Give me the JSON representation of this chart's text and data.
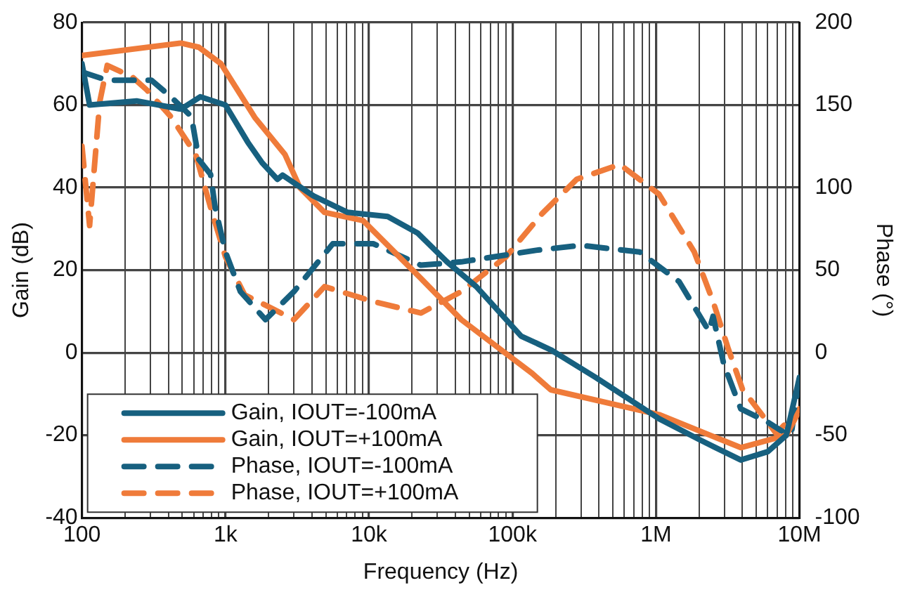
{
  "chart_data": {
    "type": "line",
    "xlabel": "Frequency (Hz)",
    "ylabel": "Gain (dB)",
    "y2label": "Phase (°)",
    "log": "x",
    "grid": true,
    "legend": "bottom left",
    "marker": "none",
    "xlim": [
      100,
      10000000
    ],
    "xticks": [
      {
        "value": 100,
        "label": "100"
      },
      {
        "value": 200,
        "label": null
      },
      {
        "value": 300,
        "label": null
      },
      {
        "value": 400,
        "label": null
      },
      {
        "value": 500,
        "label": null
      },
      {
        "value": 600,
        "label": null
      },
      {
        "value": 700,
        "label": null
      },
      {
        "value": 800,
        "label": null
      },
      {
        "value": 900,
        "label": null
      },
      {
        "value": 1000,
        "label": "1k"
      },
      {
        "value": 2000,
        "label": null
      },
      {
        "value": 3000,
        "label": null
      },
      {
        "value": 4000,
        "label": null
      },
      {
        "value": 5000,
        "label": null
      },
      {
        "value": 6000,
        "label": null
      },
      {
        "value": 7000,
        "label": null
      },
      {
        "value": 8000,
        "label": null
      },
      {
        "value": 9000,
        "label": null
      },
      {
        "value": 10000,
        "label": "10k"
      },
      {
        "value": 20000,
        "label": null
      },
      {
        "value": 30000,
        "label": null
      },
      {
        "value": 40000,
        "label": null
      },
      {
        "value": 50000,
        "label": null
      },
      {
        "value": 60000,
        "label": null
      },
      {
        "value": 70000,
        "label": null
      },
      {
        "value": 80000,
        "label": null
      },
      {
        "value": 90000,
        "label": null
      },
      {
        "value": 100000,
        "label": "100k"
      },
      {
        "value": 200000,
        "label": null
      },
      {
        "value": 300000,
        "label": null
      },
      {
        "value": 400000,
        "label": null
      },
      {
        "value": 500000,
        "label": null
      },
      {
        "value": 600000,
        "label": null
      },
      {
        "value": 700000,
        "label": null
      },
      {
        "value": 800000,
        "label": null
      },
      {
        "value": 900000,
        "label": null
      },
      {
        "value": 1000000,
        "label": "1M"
      },
      {
        "value": 2000000,
        "label": null
      },
      {
        "value": 3000000,
        "label": null
      },
      {
        "value": 4000000,
        "label": null
      },
      {
        "value": 5000000,
        "label": null
      },
      {
        "value": 6000000,
        "label": null
      },
      {
        "value": 7000000,
        "label": null
      },
      {
        "value": 8000000,
        "label": null
      },
      {
        "value": 9000000,
        "label": null
      },
      {
        "value": 10000000,
        "label": "10M"
      }
    ],
    "ylim": [
      -40,
      80
    ],
    "yticks": [
      -40,
      -20,
      0,
      20,
      40,
      60,
      80
    ],
    "y2lim": [
      -100,
      200
    ],
    "y2ticks": [
      -100,
      -50,
      0,
      50,
      100,
      150,
      200
    ],
    "series": [
      {
        "name": "Gain, IOUT=-100mA",
        "color": "#17607f",
        "line_style": "solid",
        "x": [
          100,
          113,
          240,
          490,
          667,
          1000,
          1430,
          1800,
          2300,
          2500,
          4100,
          7100,
          13500,
          21800,
          35000,
          56000,
          115000,
          185000,
          380000,
          1050000,
          1990000,
          3900000,
          6000000,
          8100000,
          10000000
        ],
        "values": [
          70,
          60,
          61,
          59,
          62,
          60,
          51,
          46,
          42,
          43,
          38,
          34,
          33,
          29,
          22,
          16,
          4,
          0.7,
          -6,
          -16,
          -21,
          -26,
          -24,
          -20,
          -6
        ]
      },
      {
        "name": "Gain, IOUT=+100mA",
        "color": "#ef7b3a",
        "line_style": "solid",
        "x": [
          100,
          490,
          652,
          931,
          1600,
          2600,
          3300,
          4900,
          9100,
          23000,
          44000,
          137000,
          185000,
          1050000,
          3900000,
          8100000,
          10000000
        ],
        "values": [
          72,
          75,
          74,
          70,
          57,
          48,
          40,
          34,
          32,
          18,
          8,
          -5,
          -9,
          -15,
          -23,
          -20,
          -14
        ]
      },
      {
        "name": "Phase, IOUT=-100mA",
        "color": "#17607f",
        "line_style": "dashed",
        "axis": "y2",
        "x": [
          100,
          150,
          305,
          416,
          579,
          652,
          787,
          847,
          1000,
          1270,
          1900,
          3000,
          5600,
          10700,
          23000,
          44000,
          146000,
          300000,
          770000,
          1450000,
          2340000,
          2500000,
          2970000,
          3900000,
          6000000,
          8700000,
          10000000
        ],
        "values": [
          170,
          165,
          165,
          155,
          143,
          117,
          108,
          88,
          61,
          37,
          20,
          37,
          66,
          66,
          53,
          55,
          62,
          65,
          61,
          43,
          13,
          22,
          -7,
          -34,
          -42,
          -51,
          -16
        ]
      },
      {
        "name": "Phase, IOUT=+100mA",
        "color": "#ef7b3a",
        "line_style": "dashed",
        "axis": "y2",
        "x": [
          100,
          113,
          133,
          150,
          224,
          284,
          416,
          621,
          787,
          1000,
          1360,
          2200,
          3000,
          4900,
          10700,
          23000,
          44000,
          90000,
          160000,
          280000,
          560000,
          1050000,
          1850000,
          2500000,
          3200000,
          4000000,
          6900000,
          10000000
        ],
        "values": [
          125,
          77,
          152,
          174,
          167,
          159,
          143,
          120,
          88,
          58,
          35,
          26,
          20,
          40,
          31,
          24,
          37,
          58,
          84,
          105,
          114,
          96,
          61,
          31,
          2,
          -22,
          -49,
          -34
        ]
      }
    ]
  }
}
